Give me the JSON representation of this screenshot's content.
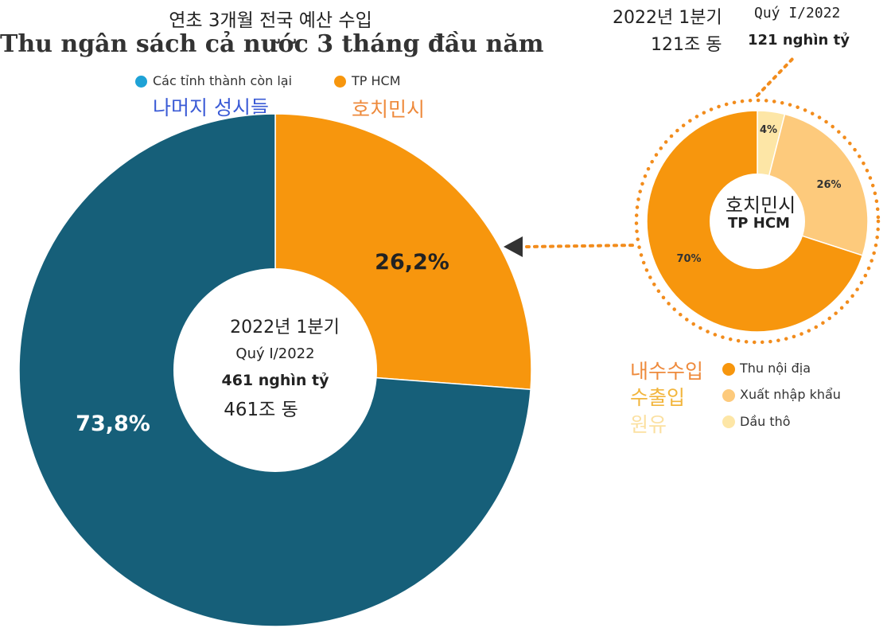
{
  "header": {
    "subtitle_ko": "연초 3개월 전국 예산 수입",
    "title_vi": "Thu ngân sách cả nước 3 tháng đầu năm"
  },
  "colors": {
    "rest": "#165f79",
    "hcm": "#f7960d",
    "domestic": "#f7960d",
    "trade": "#fdca7c",
    "oil": "#fde6a6",
    "legend_rest_dot": "#1ea2d6",
    "dotted": "#f28c1c"
  },
  "main_legend": {
    "rest_label": "Các tỉnh thành còn lại",
    "rest_label_ko": "나머지 성시들",
    "hcm_label": "TP HCM",
    "hcm_label_ko": "호치민시"
  },
  "main_center": {
    "quarter_ko": "2022년 1분기",
    "quarter_vi": "Quý I/2022",
    "amount_vi": "461 nghìn tỷ",
    "amount_ko": "461조 동"
  },
  "small_header": {
    "quarter_ko": "2022년 1분기",
    "quarter_vi": "Quý I/2022",
    "amount_ko": "121조 동",
    "amount_vi": "121 nghìn tỷ"
  },
  "small_center": {
    "name_ko": "호치민시",
    "name_vi": "TP HCM"
  },
  "small_legend": {
    "domestic_ko": "내수수입",
    "domestic_vi": "Thu nội địa",
    "trade_ko": "수출입",
    "trade_vi": "Xuất nhập khẩu",
    "oil_ko": "원유",
    "oil_vi": "Dầu thô"
  },
  "chart_data": [
    {
      "type": "pie",
      "title": "Thu ngân sách cả nước 3 tháng đầu năm",
      "subtitle": "연초 3개월 전국 예산 수입",
      "categories": [
        "TP HCM",
        "Các tỉnh thành còn lại"
      ],
      "values": [
        26.2,
        73.8
      ],
      "labels": [
        "26,2%",
        "73,8%"
      ],
      "center_text": [
        "2022년 1분기",
        "Quý I/2022",
        "461 nghìn tỷ",
        "461조 동"
      ]
    },
    {
      "type": "pie",
      "title": "TP HCM",
      "subtitle": "호치민시",
      "categories": [
        "Dầu thô",
        "Xuất nhập khẩu",
        "Thu nội địa"
      ],
      "values": [
        4,
        26,
        70
      ],
      "labels": [
        "4%",
        "26%",
        "70%"
      ],
      "total": "121 nghìn tỷ"
    }
  ]
}
